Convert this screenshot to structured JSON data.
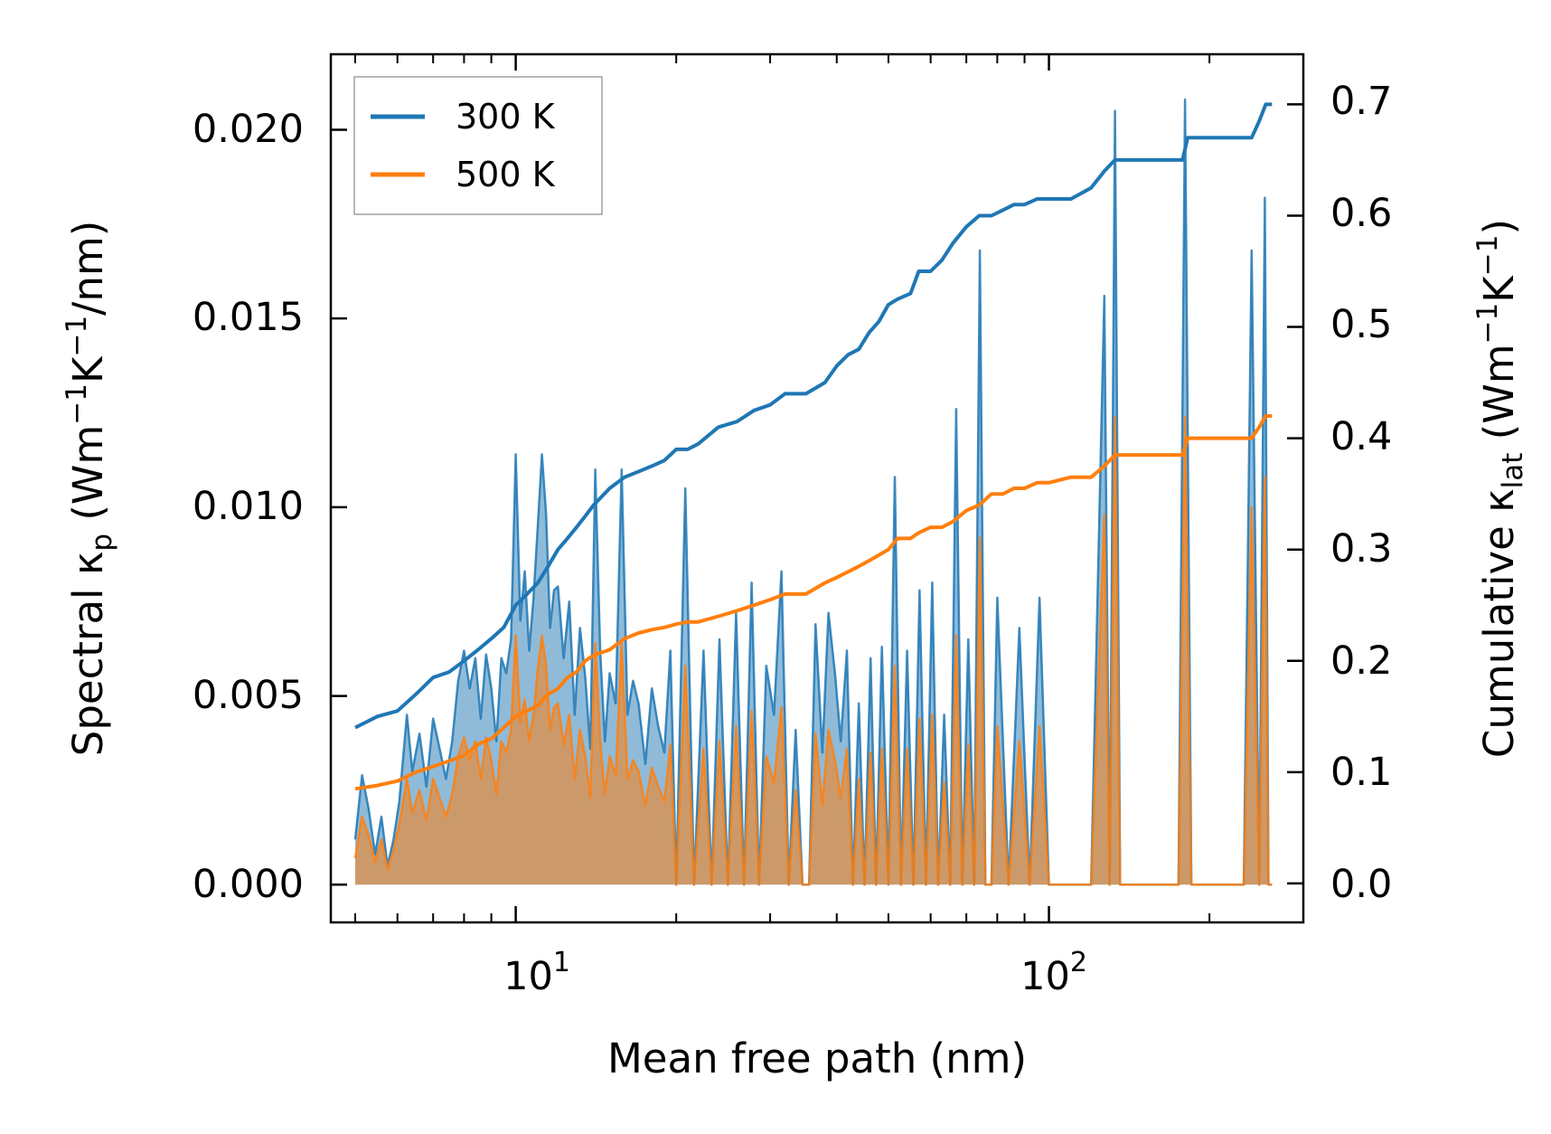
{
  "chart_data": {
    "type": "line",
    "xscale": "log",
    "xlabel": "Mean free path (nm)",
    "xlim": [
      4.5,
      300
    ],
    "x_ticks": [
      {
        "value": 10,
        "base": "10",
        "exp": "1"
      },
      {
        "value": 100,
        "base": "10",
        "exp": "2"
      }
    ],
    "y_left": {
      "label": {
        "pre": "Spectral κ",
        "sub1": "p",
        "mid1": " (Wm",
        "sup1": "−1",
        "mid2": "K",
        "sup2": "−1",
        "post": "/nm)"
      },
      "lim": [
        -0.001,
        0.022
      ],
      "ticks": [
        0.0,
        0.005,
        0.01,
        0.015,
        0.02
      ],
      "tick_labels": [
        "0.000",
        "0.005",
        "0.010",
        "0.015",
        "0.020"
      ]
    },
    "y_right": {
      "label": {
        "pre": "Cumulative κ",
        "sub1": "lat",
        "mid1": " (Wm",
        "sup1": "−1",
        "mid2": "K",
        "sup2": "−1",
        "post": ")"
      },
      "lim": [
        -0.035,
        0.745
      ],
      "ticks": [
        0.0,
        0.1,
        0.2,
        0.3,
        0.4,
        0.5,
        0.6,
        0.7
      ],
      "tick_labels": [
        "0.0",
        "0.1",
        "0.2",
        "0.3",
        "0.4",
        "0.5",
        "0.6",
        "0.7"
      ]
    },
    "legend": {
      "placement": "top-left",
      "entries": [
        {
          "label": "300 K",
          "color": "#1f77b4"
        },
        {
          "label": "500 K",
          "color": "#ff7f0e"
        }
      ]
    },
    "series": [
      {
        "name": "300 K",
        "color": "#1f77b4",
        "spectral": {
          "x": [
            5,
            5.15,
            5.3,
            5.45,
            5.6,
            5.75,
            5.9,
            6.05,
            6.25,
            6.4,
            6.6,
            6.8,
            7.0,
            7.2,
            7.4,
            7.6,
            7.8,
            8.0,
            8.2,
            8.4,
            8.6,
            8.8,
            9.0,
            9.2,
            9.4,
            9.6,
            9.8,
            10.0,
            10.2,
            10.4,
            10.6,
            10.8,
            11.0,
            11.2,
            11.4,
            11.6,
            11.8,
            12.0,
            12.3,
            12.6,
            12.9,
            13.2,
            13.5,
            13.8,
            14.1,
            14.4,
            14.7,
            15.0,
            15.4,
            15.8,
            16.2,
            16.6,
            17.0,
            17.5,
            18.0,
            18.5,
            19.0,
            19.5,
            20.0,
            20.8,
            21.6,
            22.5,
            23.3,
            24.1,
            25.0,
            25.9,
            26.8,
            27.7,
            28.6,
            29.5,
            30.5,
            31.5,
            32.5,
            33.5,
            34.5,
            35.5,
            36.5,
            37.6,
            38.6,
            39.7,
            40.7,
            41.8,
            42.9,
            44.0,
            45.1,
            46.3,
            47.4,
            48.6,
            50.0,
            51.4,
            52.8,
            54.2,
            55.7,
            57.2,
            58.8,
            60.4,
            62.0,
            63.6,
            65.3,
            67.0,
            68.8,
            70.6,
            72.4,
            74.2,
            76.0,
            78.0,
            80.0,
            84.0,
            88.0,
            92.0,
            96.0,
            100,
            105,
            110,
            120,
            127,
            130,
            133,
            136,
            140,
            150,
            165,
            175,
            180,
            185,
            200,
            220,
            232,
            240,
            248,
            254,
            258,
            262
          ],
          "values": [
            0.0012,
            0.0029,
            0.002,
            0.0008,
            0.0018,
            0.0005,
            0.0012,
            0.0022,
            0.0045,
            0.003,
            0.004,
            0.0026,
            0.0044,
            0.0036,
            0.0028,
            0.0038,
            0.0054,
            0.0062,
            0.0052,
            0.006,
            0.0044,
            0.0061,
            0.0052,
            0.0038,
            0.006,
            0.0056,
            0.0065,
            0.0114,
            0.007,
            0.0083,
            0.0062,
            0.0076,
            0.0095,
            0.0114,
            0.0098,
            0.0068,
            0.0078,
            0.0079,
            0.006,
            0.0075,
            0.0045,
            0.0068,
            0.0055,
            0.0036,
            0.011,
            0.0062,
            0.0038,
            0.0056,
            0.0048,
            0.011,
            0.0045,
            0.0054,
            0.0048,
            0.0032,
            0.0052,
            0.0042,
            0.0035,
            0.0062,
            0.0,
            0.0105,
            0.0,
            0.0062,
            0.0,
            0.0065,
            0.0,
            0.0072,
            0.0,
            0.008,
            0.0,
            0.0058,
            0.0045,
            0.0083,
            0.0,
            0.0041,
            0.0,
            0.0,
            0.0069,
            0.0035,
            0.0072,
            0.0056,
            0.0038,
            0.0062,
            0.0,
            0.0048,
            0.0,
            0.006,
            0.0,
            0.0063,
            0.0,
            0.0108,
            0.0,
            0.0062,
            0.0,
            0.0078,
            0.0,
            0.008,
            0.0,
            0.0045,
            0.0,
            0.0126,
            0.0,
            0.0065,
            0.0,
            0.0168,
            0.0,
            0.0,
            0.0076,
            0.0,
            0.0068,
            0.0,
            0.0076,
            0.0,
            0.0,
            0.0,
            0.0,
            0.0156,
            0.0,
            0.0205,
            0.0,
            0.0,
            0.0,
            0.0,
            0.0,
            0.0208,
            0.0,
            0.0,
            0.0,
            0.0,
            0.0168,
            0.0,
            0.0182,
            0.0,
            0.0
          ]
        },
        "cumulative": {
          "x": [
            5,
            5.5,
            6,
            6.5,
            7,
            7.5,
            8,
            8.5,
            9,
            9.5,
            10,
            10.5,
            11,
            11.5,
            12,
            12.5,
            13,
            13.5,
            14,
            15,
            16,
            17,
            18,
            19,
            20,
            21,
            22,
            24,
            26,
            28,
            30,
            32,
            35,
            38,
            40,
            42,
            44,
            46,
            48,
            50,
            52,
            55,
            57,
            60,
            63,
            66,
            70,
            74,
            78,
            82,
            86,
            90,
            95,
            100,
            110,
            120,
            127,
            133,
            140,
            160,
            178,
            182,
            200,
            240,
            248,
            255,
            262
          ],
          "values": [
            0.14,
            0.15,
            0.155,
            0.17,
            0.185,
            0.19,
            0.2,
            0.21,
            0.22,
            0.23,
            0.25,
            0.26,
            0.27,
            0.285,
            0.3,
            0.31,
            0.32,
            0.33,
            0.34,
            0.355,
            0.365,
            0.37,
            0.375,
            0.38,
            0.39,
            0.39,
            0.395,
            0.41,
            0.415,
            0.425,
            0.43,
            0.44,
            0.44,
            0.45,
            0.465,
            0.475,
            0.48,
            0.495,
            0.505,
            0.52,
            0.525,
            0.53,
            0.55,
            0.55,
            0.56,
            0.575,
            0.59,
            0.6,
            0.6,
            0.605,
            0.61,
            0.61,
            0.615,
            0.615,
            0.615,
            0.625,
            0.64,
            0.65,
            0.65,
            0.65,
            0.65,
            0.67,
            0.67,
            0.67,
            0.685,
            0.7,
            0.7
          ]
        }
      },
      {
        "name": "500 K",
        "color": "#ff7f0e",
        "spectral": {
          "x": [
            5,
            5.15,
            5.3,
            5.45,
            5.6,
            5.75,
            5.9,
            6.05,
            6.25,
            6.4,
            6.6,
            6.8,
            7.0,
            7.2,
            7.4,
            7.6,
            7.8,
            8.0,
            8.2,
            8.4,
            8.6,
            8.8,
            9.0,
            9.2,
            9.4,
            9.6,
            9.8,
            10.0,
            10.2,
            10.4,
            10.6,
            10.8,
            11.0,
            11.2,
            11.4,
            11.6,
            11.8,
            12.0,
            12.3,
            12.6,
            12.9,
            13.2,
            13.5,
            13.8,
            14.1,
            14.4,
            14.7,
            15.0,
            15.4,
            15.8,
            16.2,
            16.6,
            17.0,
            17.5,
            18.0,
            18.5,
            19.0,
            19.5,
            20.0,
            20.8,
            21.6,
            22.5,
            23.3,
            24.1,
            25.0,
            25.9,
            26.8,
            27.7,
            28.6,
            29.5,
            30.5,
            31.5,
            32.5,
            33.5,
            34.5,
            35.5,
            36.5,
            37.6,
            38.6,
            39.7,
            40.7,
            41.8,
            42.9,
            44.0,
            45.1,
            46.3,
            47.4,
            48.6,
            50.0,
            51.4,
            52.8,
            54.2,
            55.7,
            57.2,
            58.8,
            60.4,
            62.0,
            63.6,
            65.3,
            67.0,
            68.8,
            70.6,
            72.4,
            74.2,
            76.0,
            78.0,
            80.0,
            84.0,
            88.0,
            92.0,
            96.0,
            100,
            105,
            110,
            120,
            127,
            130,
            133,
            136,
            140,
            150,
            165,
            175,
            180,
            185,
            200,
            220,
            232,
            240,
            248,
            254,
            258,
            262
          ],
          "values": [
            0.0007,
            0.0018,
            0.0013,
            0.0006,
            0.0012,
            0.0004,
            0.0009,
            0.0016,
            0.0028,
            0.0019,
            0.0025,
            0.0017,
            0.0028,
            0.0023,
            0.0018,
            0.0024,
            0.0034,
            0.0039,
            0.0033,
            0.0038,
            0.0028,
            0.0039,
            0.0033,
            0.0024,
            0.0038,
            0.0035,
            0.0041,
            0.0066,
            0.0043,
            0.0049,
            0.0038,
            0.0045,
            0.0057,
            0.0066,
            0.0058,
            0.0041,
            0.0047,
            0.0048,
            0.0037,
            0.0045,
            0.0028,
            0.0041,
            0.0034,
            0.0023,
            0.0064,
            0.0038,
            0.0024,
            0.0034,
            0.0029,
            0.0064,
            0.0028,
            0.0033,
            0.003,
            0.0021,
            0.0031,
            0.0026,
            0.0022,
            0.0037,
            0.0,
            0.0058,
            0.0,
            0.0036,
            0.0,
            0.0038,
            0.0,
            0.0042,
            0.0,
            0.0046,
            0.0,
            0.0034,
            0.0027,
            0.0047,
            0.0,
            0.0025,
            0.0,
            0.0,
            0.004,
            0.0021,
            0.0041,
            0.0033,
            0.0023,
            0.0036,
            0.0,
            0.0028,
            0.0,
            0.0035,
            0.0,
            0.0036,
            0.0,
            0.0058,
            0.0,
            0.0036,
            0.0,
            0.0044,
            0.0,
            0.0045,
            0.0,
            0.0027,
            0.0,
            0.0066,
            0.0,
            0.0037,
            0.0,
            0.0092,
            0.0,
            0.0,
            0.0042,
            0.0,
            0.0038,
            0.0,
            0.0042,
            0.0,
            0.0,
            0.0,
            0.0,
            0.0098,
            0.0,
            0.0124,
            0.0,
            0.0,
            0.0,
            0.0,
            0.0,
            0.0124,
            0.0,
            0.0,
            0.0,
            0.0,
            0.01,
            0.0,
            0.0108,
            0.0,
            0.0
          ]
        },
        "cumulative": {
          "x": [
            5,
            5.5,
            6,
            6.5,
            7,
            7.5,
            8,
            8.5,
            9,
            9.5,
            10,
            10.5,
            11,
            11.5,
            12,
            12.5,
            13,
            13.5,
            14,
            15,
            16,
            17,
            18,
            19,
            20,
            21,
            22,
            24,
            26,
            28,
            30,
            32,
            35,
            38,
            40,
            42,
            44,
            46,
            48,
            50,
            52,
            55,
            57,
            60,
            63,
            66,
            70,
            74,
            78,
            82,
            86,
            90,
            95,
            100,
            110,
            120,
            127,
            133,
            140,
            160,
            178,
            182,
            200,
            240,
            248,
            255,
            262
          ],
          "values": [
            0.085,
            0.088,
            0.092,
            0.1,
            0.105,
            0.11,
            0.115,
            0.125,
            0.13,
            0.14,
            0.15,
            0.155,
            0.16,
            0.17,
            0.175,
            0.185,
            0.19,
            0.2,
            0.205,
            0.21,
            0.22,
            0.225,
            0.228,
            0.23,
            0.233,
            0.235,
            0.235,
            0.24,
            0.245,
            0.25,
            0.255,
            0.26,
            0.26,
            0.27,
            0.275,
            0.28,
            0.285,
            0.29,
            0.295,
            0.3,
            0.31,
            0.31,
            0.315,
            0.32,
            0.32,
            0.325,
            0.335,
            0.34,
            0.35,
            0.35,
            0.355,
            0.355,
            0.36,
            0.36,
            0.365,
            0.365,
            0.375,
            0.385,
            0.385,
            0.385,
            0.385,
            0.4,
            0.4,
            0.4,
            0.41,
            0.42,
            0.42
          ]
        }
      }
    ]
  }
}
